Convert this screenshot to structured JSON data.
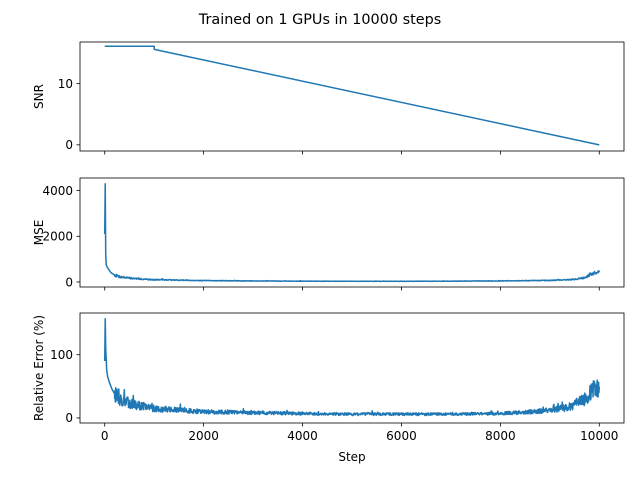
{
  "figure": {
    "title": "Trained on 1 GPUs in 10000 steps"
  },
  "colors": {
    "line": "#1f77b4",
    "axes": "#000000",
    "background": "#ffffff"
  },
  "chart_data": [
    {
      "type": "line",
      "ylabel": "SNR",
      "xlabel": "",
      "xlim": [
        -500,
        10500
      ],
      "ylim": [
        -1,
        16.8
      ],
      "xticks": [
        0,
        2000,
        4000,
        6000,
        8000,
        10000
      ],
      "yticks": [
        0,
        10
      ],
      "show_xticklabels": false,
      "grid": false,
      "series": [
        {
          "x": [
            0,
            1000,
            1000,
            10000
          ],
          "y": [
            16.1,
            16.1,
            15.6,
            0
          ]
        }
      ]
    },
    {
      "type": "line",
      "ylabel": "MSE",
      "xlabel": "",
      "xlim": [
        -500,
        10500
      ],
      "ylim": [
        -220,
        4550
      ],
      "xticks": [
        0,
        2000,
        4000,
        6000,
        8000,
        10000
      ],
      "yticks": [
        0,
        2000,
        4000
      ],
      "show_xticklabels": false,
      "grid": false,
      "noise": {
        "seed": 7,
        "points": 1200,
        "amp_frac": 0.22
      },
      "series": [
        {
          "x": [
            0,
            10,
            20,
            30,
            50,
            80,
            120,
            200,
            300,
            500,
            800,
            1000,
            1500,
            2000,
            3000,
            4000,
            5000,
            6000,
            7000,
            8000,
            8500,
            9000,
            9300,
            9500,
            9700,
            9800,
            9900,
            10000
          ],
          "y": [
            2100,
            4300,
            1200,
            750,
            650,
            550,
            420,
            300,
            230,
            170,
            120,
            100,
            80,
            60,
            45,
            35,
            30,
            30,
            35,
            45,
            55,
            70,
            90,
            120,
            180,
            260,
            380,
            420
          ]
        }
      ]
    },
    {
      "type": "line",
      "ylabel": "Relative Error (%)",
      "xlabel": "Step",
      "xlim": [
        -500,
        10500
      ],
      "ylim": [
        -8,
        166
      ],
      "xticks": [
        0,
        2000,
        4000,
        6000,
        8000,
        10000
      ],
      "yticks": [
        0,
        100
      ],
      "show_xticklabels": true,
      "grid": false,
      "noise": {
        "seed": 13,
        "points": 1400,
        "amp_frac": 0.35
      },
      "series": [
        {
          "x": [
            0,
            10,
            20,
            40,
            60,
            100,
            150,
            200,
            300,
            400,
            600,
            800,
            1000,
            1500,
            2000,
            3000,
            4000,
            5000,
            6000,
            7000,
            8000,
            8500,
            9000,
            9300,
            9500,
            9700,
            9800,
            9900,
            10000
          ],
          "y": [
            90,
            157,
            110,
            75,
            65,
            55,
            45,
            38,
            30,
            26,
            21,
            18,
            15,
            12,
            10,
            8,
            7,
            6,
            6,
            6,
            7,
            9,
            12,
            16,
            21,
            30,
            38,
            48,
            52
          ]
        }
      ]
    }
  ]
}
